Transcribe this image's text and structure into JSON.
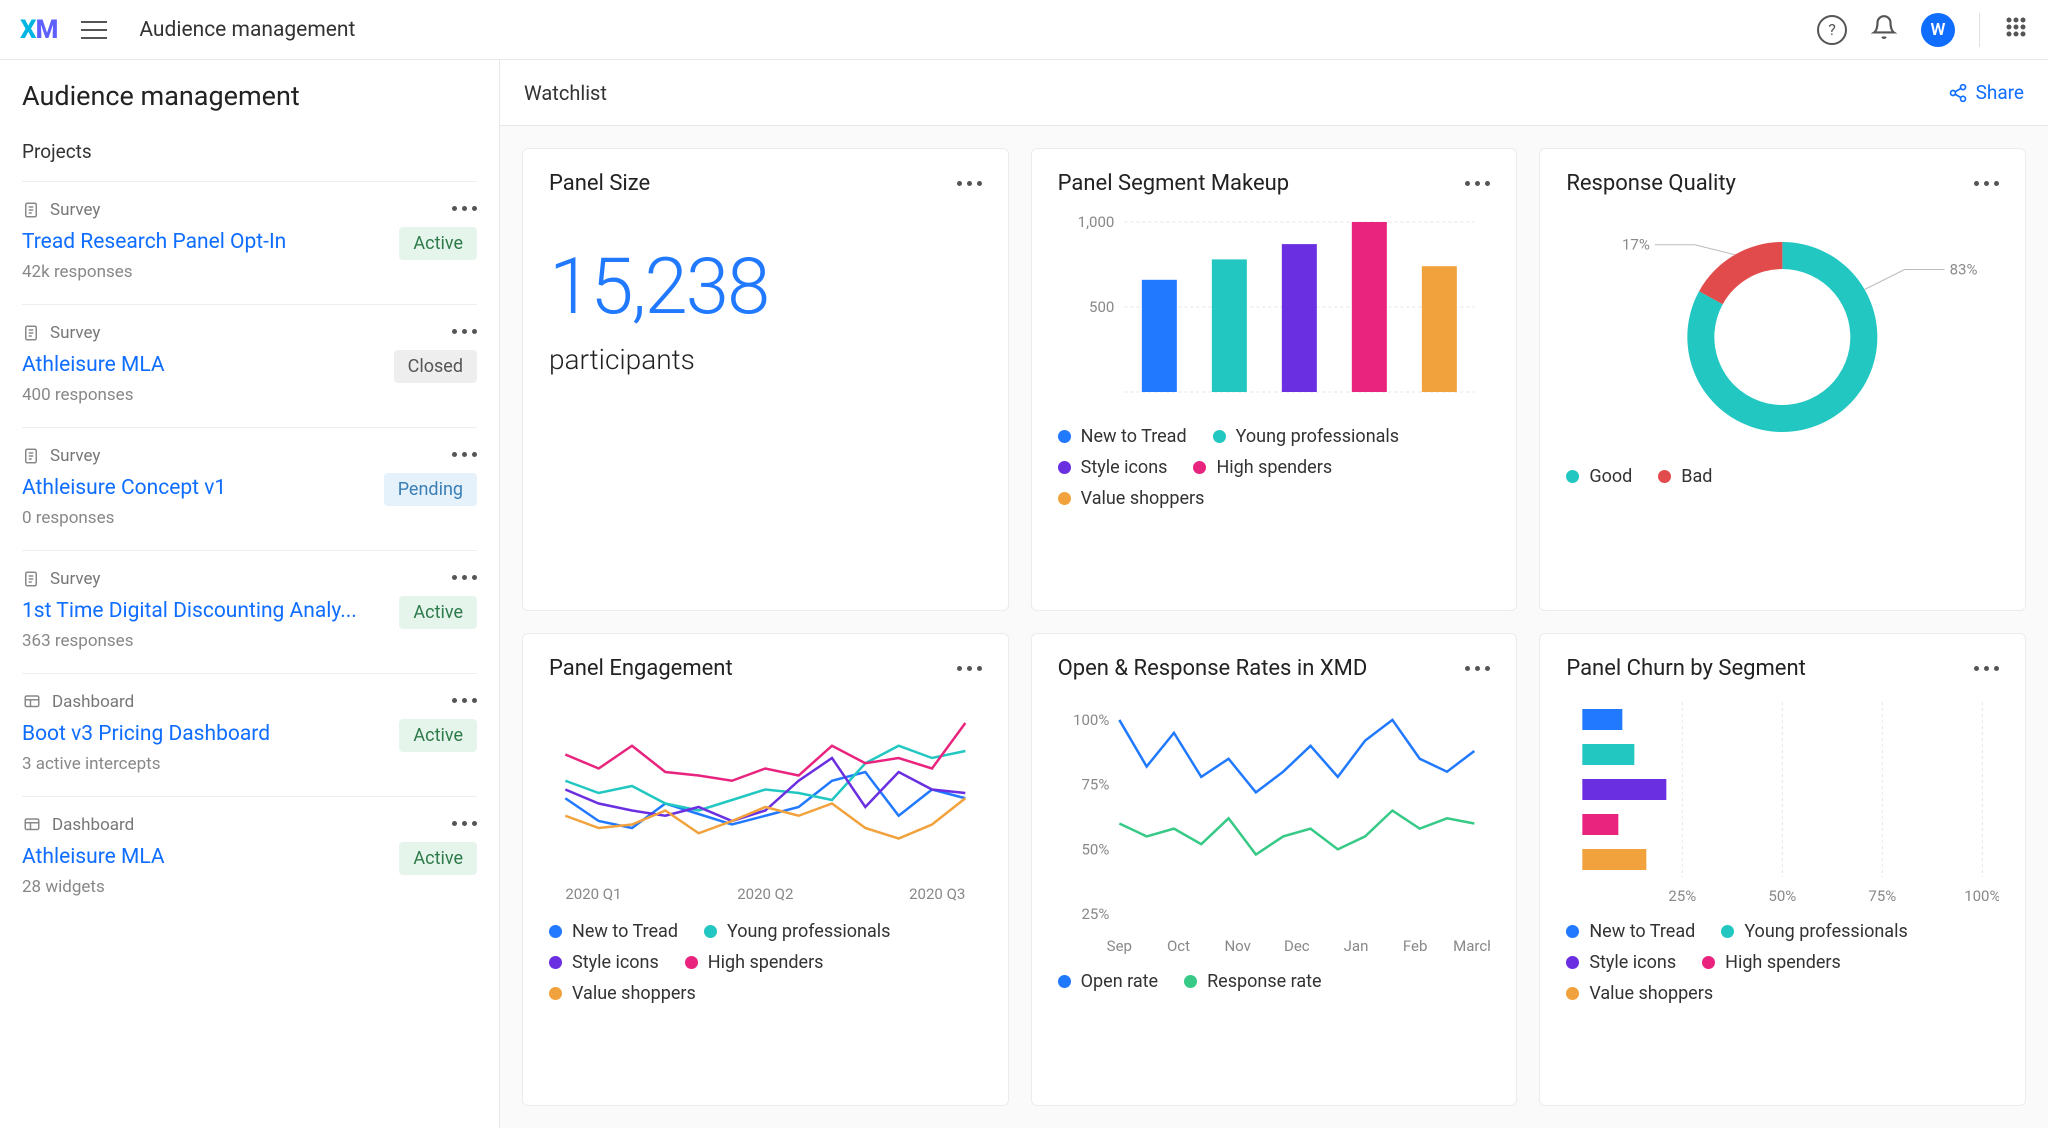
{
  "header": {
    "page_title": "Audience management",
    "avatar_initial": "W"
  },
  "sidebar": {
    "title": "Audience management",
    "section_label": "Projects",
    "type_labels": {
      "survey": "Survey",
      "dashboard": "Dashboard"
    },
    "badge_labels": {
      "active": "Active",
      "closed": "Closed",
      "pending": "Pending"
    },
    "projects": [
      {
        "type": "survey",
        "title": "Tread Research Panel Opt-In",
        "meta": "42k responses",
        "badge": "active"
      },
      {
        "type": "survey",
        "title": "Athleisure MLA",
        "meta": "400 responses",
        "badge": "closed"
      },
      {
        "type": "survey",
        "title": "Athleisure Concept v1",
        "meta": "0 responses",
        "badge": "pending"
      },
      {
        "type": "survey",
        "title": "1st Time Digital Discounting Analy...",
        "meta": "363 responses",
        "badge": "active"
      },
      {
        "type": "dashboard",
        "title": "Boot v3 Pricing Dashboard",
        "meta": "3 active intercepts",
        "badge": "active"
      },
      {
        "type": "dashboard",
        "title": "Athleisure MLA",
        "meta": "28 widgets",
        "badge": "active"
      }
    ]
  },
  "content": {
    "header_title": "Watchlist",
    "share_label": "Share"
  },
  "palette": {
    "blue": "#2079ff",
    "teal": "#22c7c1",
    "purple": "#6a2fe0",
    "pink": "#e8247f",
    "orange": "#f2a23c",
    "green": "#37c986",
    "red": "#e24b4b"
  },
  "panel_size": {
    "title": "Panel Size",
    "value": "15,238",
    "label": "participants",
    "value_color": "#2079ff"
  },
  "segment_makeup": {
    "title": "Panel Segment Makeup",
    "type": "bar",
    "ymax": 1000,
    "yticks": [
      500,
      1000
    ],
    "bars": [
      {
        "label": "New to Tread",
        "value": 660,
        "color": "#2079ff"
      },
      {
        "label": "Young professionals",
        "value": 780,
        "color": "#22c7c1"
      },
      {
        "label": "Style icons",
        "value": 870,
        "color": "#6a2fe0"
      },
      {
        "label": "High spenders",
        "value": 1000,
        "color": "#e8247f"
      },
      {
        "label": "Value shoppers",
        "value": 740,
        "color": "#f2a23c"
      }
    ]
  },
  "response_quality": {
    "title": "Response Quality",
    "type": "donut",
    "slices": [
      {
        "label": "Good",
        "value": 83,
        "color": "#22c7c1",
        "text": "83%"
      },
      {
        "label": "Bad",
        "value": 17,
        "color": "#e24b4b",
        "text": "17%"
      }
    ]
  },
  "panel_engagement": {
    "title": "Panel Engagement",
    "type": "line",
    "xlabels": [
      "2020 Q1",
      "2020 Q2",
      "2020 Q3"
    ],
    "ymin": 0,
    "ymax": 100,
    "series": [
      {
        "label": "New to Tread",
        "color": "#2079ff",
        "values": [
          45,
          32,
          28,
          42,
          36,
          30,
          35,
          40,
          55,
          60,
          35,
          50,
          45
        ]
      },
      {
        "label": "Young professionals",
        "color": "#22c7c1",
        "values": [
          55,
          48,
          52,
          42,
          38,
          44,
          50,
          48,
          44,
          65,
          75,
          68,
          72
        ]
      },
      {
        "label": "Style icons",
        "color": "#6a2fe0",
        "values": [
          50,
          42,
          38,
          35,
          40,
          32,
          38,
          55,
          68,
          40,
          60,
          50,
          48
        ]
      },
      {
        "label": "High spenders",
        "color": "#e8247f",
        "values": [
          70,
          62,
          75,
          60,
          58,
          55,
          62,
          58,
          75,
          65,
          68,
          62,
          88
        ]
      },
      {
        "label": "Value shoppers",
        "color": "#f2a23c",
        "values": [
          35,
          28,
          30,
          38,
          25,
          32,
          40,
          35,
          42,
          28,
          22,
          30,
          45
        ]
      }
    ]
  },
  "open_response": {
    "title": "Open & Response Rates in XMD",
    "type": "line",
    "xlabels": [
      "Sep",
      "Oct",
      "Nov",
      "Dec",
      "Jan",
      "Feb",
      "March"
    ],
    "yticks": [
      25,
      50,
      75,
      100
    ],
    "ymin": 20,
    "ymax": 105,
    "series": [
      {
        "label": "Open rate",
        "color": "#2079ff",
        "values": [
          100,
          82,
          95,
          78,
          85,
          72,
          80,
          90,
          78,
          92,
          100,
          85,
          80,
          88
        ]
      },
      {
        "label": "Response rate",
        "color": "#37c986",
        "values": [
          60,
          55,
          58,
          52,
          62,
          48,
          55,
          58,
          50,
          55,
          65,
          58,
          62,
          60
        ]
      }
    ]
  },
  "panel_churn": {
    "title": "Panel Churn by Segment",
    "type": "hbar",
    "xticks": [
      25,
      50,
      75,
      100
    ],
    "xmax": 100,
    "bars": [
      {
        "label": "New to Tread",
        "value": 10,
        "color": "#2079ff"
      },
      {
        "label": "Young professionals",
        "value": 13,
        "color": "#22c7c1"
      },
      {
        "label": "Style icons",
        "value": 21,
        "color": "#6a2fe0"
      },
      {
        "label": "High spenders",
        "value": 9,
        "color": "#e8247f"
      },
      {
        "label": "Value shoppers",
        "value": 16,
        "color": "#f2a23c"
      }
    ]
  }
}
